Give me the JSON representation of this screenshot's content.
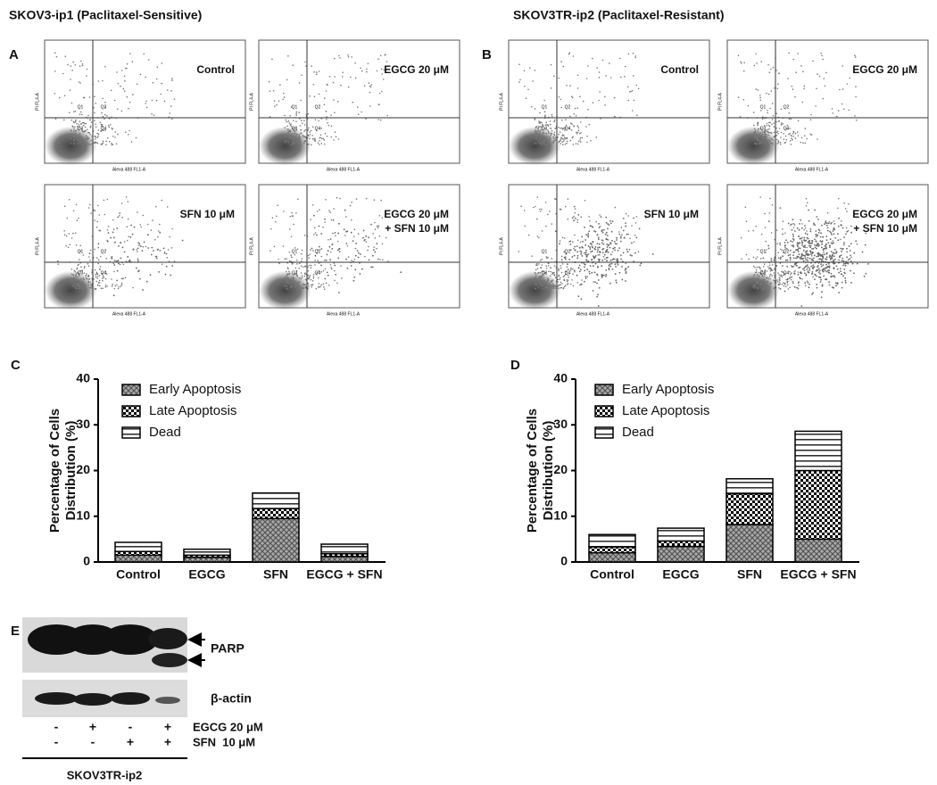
{
  "flow": {
    "panels": [
      {
        "letter": "A",
        "title": "SKOV3-ip1 (Paclitaxel-Sensitive)",
        "plots": [
          {
            "label": [
              "Control"
            ]
          },
          {
            "label": [
              "EGCG 20 μM"
            ]
          },
          {
            "label": [
              "SFN 10 μM"
            ]
          },
          {
            "label": [
              "EGCG 20 μM",
              "+ SFN 10 μM"
            ]
          }
        ]
      },
      {
        "letter": "B",
        "title": "SKOV3TR-ip2 (Paclitaxel-Resistant)",
        "plots": [
          {
            "label": [
              "Control"
            ]
          },
          {
            "label": [
              "EGCG 20 μM"
            ]
          },
          {
            "label": [
              "SFN 10 μM"
            ]
          },
          {
            "label": [
              "EGCG 20 μM",
              "+ SFN 10 μM"
            ]
          }
        ]
      }
    ],
    "x_label": "Alexa 488 FL1-A",
    "y_label": "PI FL4-A",
    "quadrants": [
      "Q1",
      "Q2",
      "Q3",
      "Q4"
    ]
  },
  "chart_data": [
    {
      "type": "stacked_bar",
      "panel": "C",
      "y_label": [
        "Percentage of Cells",
        "Distribution (%)"
      ],
      "categories": [
        "Control",
        "EGCG",
        "SFN",
        "EGCG + SFN"
      ],
      "series": [
        {
          "name": "Early Apoptosis",
          "color": "#555555",
          "pattern": "crosshatch",
          "values": [
            1.5,
            1.0,
            9.5,
            1.2
          ]
        },
        {
          "name": "Late Apoptosis",
          "color": "#000000",
          "pattern": "checker",
          "values": [
            0.8,
            0.5,
            2.2,
            0.6
          ]
        },
        {
          "name": "Dead",
          "color": "#333333",
          "pattern": "stripes",
          "values": [
            2.0,
            1.3,
            3.4,
            2.1
          ]
        }
      ],
      "ylim": [
        0,
        40
      ],
      "yticks": [
        0,
        10,
        20,
        30,
        40
      ]
    },
    {
      "type": "stacked_bar",
      "panel": "D",
      "y_label": [
        "Percentage of Cells",
        "Distribution (%)"
      ],
      "categories": [
        "Control",
        "EGCG",
        "SFN",
        "EGCG + SFN"
      ],
      "series": [
        {
          "name": "Early Apoptosis",
          "color": "#555555",
          "pattern": "crosshatch",
          "values": [
            2.0,
            3.4,
            8.2,
            5.0
          ]
        },
        {
          "name": "Late Apoptosis",
          "color": "#000000",
          "pattern": "checker",
          "values": [
            1.3,
            1.2,
            6.7,
            15.0
          ]
        },
        {
          "name": "Dead",
          "color": "#333333",
          "pattern": "stripes",
          "values": [
            2.7,
            2.8,
            3.3,
            8.6
          ]
        }
      ],
      "ylim": [
        0,
        40
      ],
      "yticks": [
        0,
        10,
        20,
        30,
        40
      ]
    }
  ],
  "blot": {
    "letter": "E",
    "bands": [
      "PARP",
      "β-actin"
    ],
    "treatments": [
      {
        "name": "EGCG 20 μM",
        "signs": [
          "-",
          "+",
          "-",
          "+"
        ]
      },
      {
        "name": "SFN  10 μM",
        "signs": [
          "-",
          "-",
          "+",
          "+"
        ]
      }
    ],
    "cell_line": "SKOV3TR-ip2"
  }
}
